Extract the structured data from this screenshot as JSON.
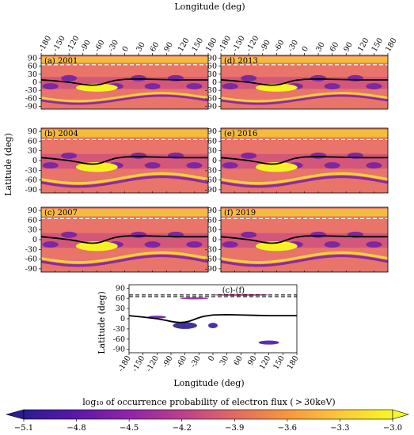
{
  "figure": {
    "top_xlabel": "Longitude (deg)",
    "ylabel": "Latitude (deg)",
    "bottom_xlabel": "Longitude (deg)",
    "bottom_ylabel": "Latitude (deg)",
    "colorbar_label": "log₁₀ of occurrence probability of electron flux ( > 30keV)"
  },
  "chart_data": {
    "type": "heatmap",
    "x_ticks": [
      -180,
      -150,
      -120,
      -90,
      -60,
      -30,
      0,
      30,
      60,
      90,
      120,
      150,
      180
    ],
    "y_ticks": [
      90,
      60,
      30,
      0,
      -30,
      -60,
      -90
    ],
    "xlim": [
      -180,
      180
    ],
    "ylim": [
      -100,
      100
    ],
    "panels": [
      {
        "label": "(a) 2001"
      },
      {
        "label": "(d) 2013"
      },
      {
        "label": "(b) 2004"
      },
      {
        "label": "(e) 2016"
      },
      {
        "label": "(c) 2007"
      },
      {
        "label": "(f) 2019"
      },
      {
        "label": "(c)-(f)"
      }
    ],
    "dashed_line_latitude": 65,
    "colorbar": {
      "ticks": [
        -5.1,
        -4.8,
        -4.5,
        -4.2,
        -3.9,
        -3.6,
        -3.3,
        -3.0
      ],
      "range": [
        -5.1,
        -3.0
      ],
      "colormap": "plasma",
      "colors": [
        "#2a1d8f",
        "#5b18a8",
        "#8f26a6",
        "#bd3f8c",
        "#e06a63",
        "#f59640",
        "#fbc93a",
        "#f7f724"
      ]
    },
    "magnetic_equator": {
      "lon": [
        -180,
        -150,
        -120,
        -100,
        -90,
        -80,
        -70,
        -60,
        -50,
        -40,
        -30,
        -20,
        0,
        30,
        60,
        90,
        120,
        150,
        180
      ],
      "lat": [
        9,
        5,
        0,
        -5,
        -8,
        -10,
        -11,
        -10,
        -7,
        -2,
        3,
        7,
        11,
        12,
        11,
        10,
        9,
        9,
        9
      ]
    }
  }
}
